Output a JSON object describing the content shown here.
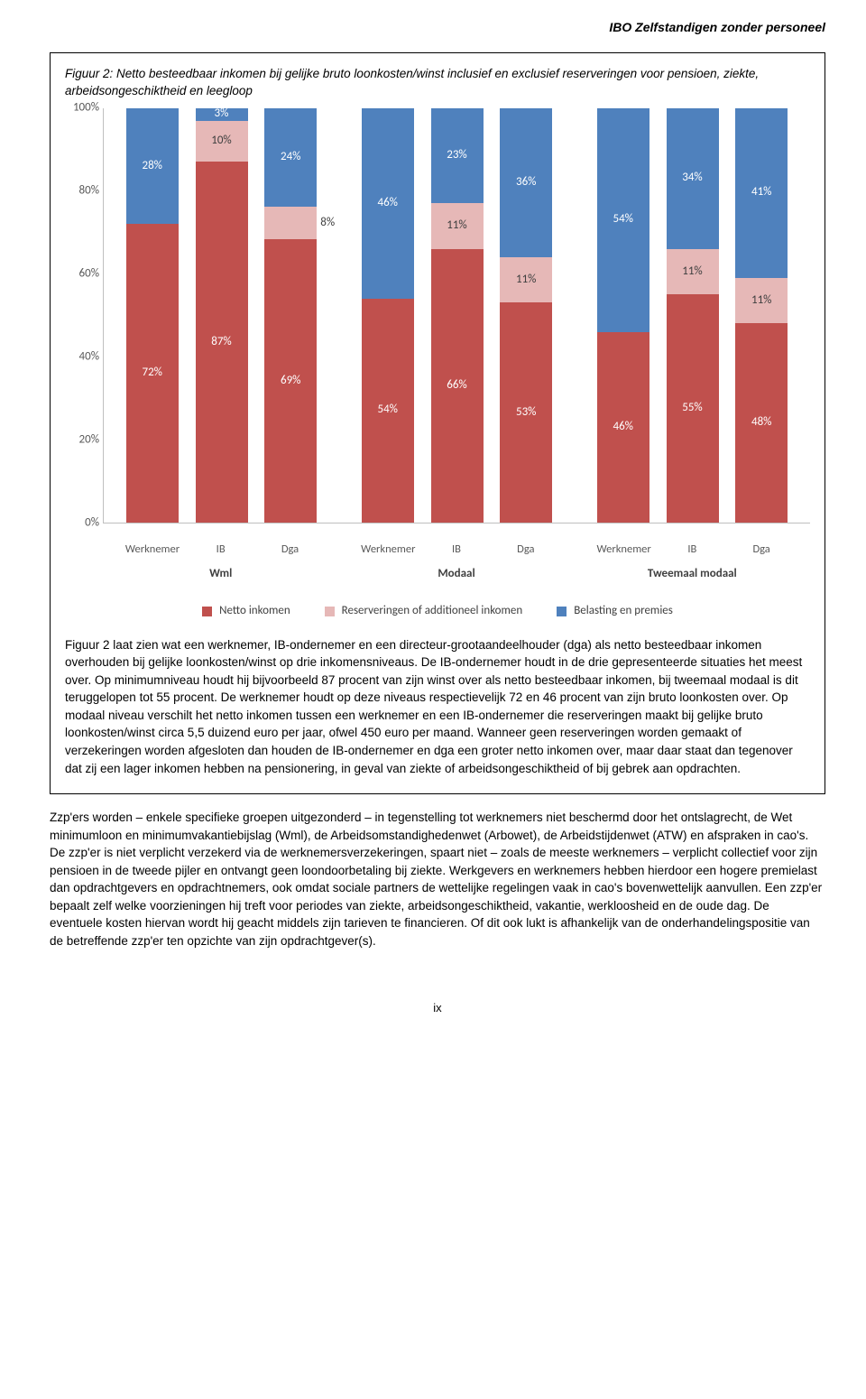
{
  "header": "IBO Zelfstandigen zonder personeel",
  "figure": {
    "caption": "Figuur 2: Netto besteedbaar inkomen bij gelijke bruto loonkosten/winst inclusief en exclusief reserveringen voor pensioen, ziekte, arbeidsongeschiktheid en leegloop",
    "chart": {
      "type": "stacked-bar",
      "ylim": [
        0,
        100
      ],
      "ytick_step": 20,
      "yticks": [
        "0%",
        "20%",
        "40%",
        "60%",
        "80%",
        "100%"
      ],
      "colors": {
        "netto": "#c0504d",
        "reserv": "#e6b8b7",
        "belasting": "#4f81bd"
      },
      "legend": [
        {
          "key": "netto",
          "label": "Netto inkomen"
        },
        {
          "key": "reserv",
          "label": "Reserveringen of additioneel inkomen"
        },
        {
          "key": "belasting",
          "label": "Belasting en premies"
        }
      ],
      "groups": [
        {
          "label": "Wml",
          "bars": [
            {
              "label": "Werknemer",
              "segs": [
                {
                  "k": "netto",
                  "v": 72,
                  "t": "72%"
                },
                {
                  "k": "belasting",
                  "v": 28,
                  "t": "28%"
                }
              ]
            },
            {
              "label": "IB",
              "segs": [
                {
                  "k": "netto",
                  "v": 87,
                  "t": "87%"
                },
                {
                  "k": "reserv",
                  "v": 10,
                  "t": "10%",
                  "light": true
                },
                {
                  "k": "belasting",
                  "v": 3,
                  "t": "3%"
                }
              ]
            },
            {
              "label": "Dga",
              "segs": [
                {
                  "k": "netto",
                  "v": 69,
                  "t": "69%"
                },
                {
                  "k": "reserv",
                  "v": 8,
                  "t": "8%",
                  "light": true,
                  "outside": true
                },
                {
                  "k": "belasting",
                  "v": 24,
                  "t": "24%"
                }
              ]
            }
          ]
        },
        {
          "label": "Modaal",
          "bars": [
            {
              "label": "Werknemer",
              "segs": [
                {
                  "k": "netto",
                  "v": 54,
                  "t": "54%"
                },
                {
                  "k": "belasting",
                  "v": 46,
                  "t": "46%"
                }
              ]
            },
            {
              "label": "IB",
              "segs": [
                {
                  "k": "netto",
                  "v": 66,
                  "t": "66%"
                },
                {
                  "k": "reserv",
                  "v": 11,
                  "t": "11%",
                  "light": true
                },
                {
                  "k": "belasting",
                  "v": 23,
                  "t": "23%"
                }
              ]
            },
            {
              "label": "Dga",
              "segs": [
                {
                  "k": "netto",
                  "v": 53,
                  "t": "53%"
                },
                {
                  "k": "reserv",
                  "v": 11,
                  "t": "11%",
                  "light": true
                },
                {
                  "k": "belasting",
                  "v": 36,
                  "t": "36%"
                }
              ]
            }
          ]
        },
        {
          "label": "Tweemaal modaal",
          "bars": [
            {
              "label": "Werknemer",
              "segs": [
                {
                  "k": "netto",
                  "v": 46,
                  "t": "46%"
                },
                {
                  "k": "belasting",
                  "v": 54,
                  "t": "54%"
                }
              ]
            },
            {
              "label": "IB",
              "segs": [
                {
                  "k": "netto",
                  "v": 55,
                  "t": "55%"
                },
                {
                  "k": "reserv",
                  "v": 11,
                  "t": "11%",
                  "light": true
                },
                {
                  "k": "belasting",
                  "v": 34,
                  "t": "34%"
                }
              ]
            },
            {
              "label": "Dga",
              "segs": [
                {
                  "k": "netto",
                  "v": 48,
                  "t": "48%"
                },
                {
                  "k": "reserv",
                  "v": 11,
                  "t": "11%",
                  "light": true
                },
                {
                  "k": "belasting",
                  "v": 41,
                  "t": "41%"
                }
              ]
            }
          ]
        }
      ]
    },
    "body": "Figuur 2 laat zien wat een werknemer, IB-ondernemer en een directeur-grootaandeelhouder (dga) als netto besteedbaar inkomen overhouden bij gelijke loonkosten/winst op drie inkomensniveaus. De IB-ondernemer houdt in de drie gepresenteerde situaties het meest over. Op minimumniveau houdt hij bijvoorbeeld 87 procent van zijn winst over als netto besteedbaar inkomen, bij tweemaal modaal is dit teruggelopen tot 55 procent. De werknemer houdt op deze niveaus respectievelijk 72 en 46 procent van zijn bruto loonkosten over. Op modaal niveau verschilt het netto inkomen tussen een werknemer en een IB-ondernemer die reserveringen maakt bij gelijke bruto loonkosten/winst circa 5,5 duizend euro per jaar, ofwel 450 euro per maand. Wanneer geen reserveringen worden gemaakt of verzekeringen worden afgesloten dan houden de IB-ondernemer en dga een groter netto inkomen over, maar daar staat dan tegenover dat zij een lager inkomen hebben na pensionering, in geval van ziekte of arbeidsongeschiktheid of bij gebrek aan opdrachten."
  },
  "paragraph2": "Zzp'ers worden – enkele specifieke groepen uitgezonderd – in tegenstelling tot werknemers niet beschermd door het ontslagrecht, de Wet minimumloon en minimumvakantiebijslag (Wml), de Arbeidsomstandighedenwet (Arbowet), de Arbeidstijdenwet (ATW) en afspraken in cao's. De zzp'er is niet verplicht verzekerd via de werknemersverzekeringen, spaart niet – zoals de meeste werknemers – verplicht collectief voor zijn pensioen in de tweede pijler en ontvangt geen loondoorbetaling bij ziekte. Werkgevers en werknemers hebben hierdoor een hogere premielast dan opdrachtgevers en opdrachtnemers, ook omdat sociale partners de wettelijke regelingen vaak in cao's bovenwettelijk aanvullen. Een zzp'er bepaalt zelf welke voorzieningen hij treft voor periodes van ziekte, arbeidsongeschiktheid, vakantie, werkloosheid en de oude dag. De eventuele kosten hiervan wordt hij geacht middels zijn tarieven te financieren. Of dit ook lukt is afhankelijk van de onderhandelingspositie van de betreffende zzp'er ten opzichte van zijn opdrachtgever(s).",
  "page_num": "ix"
}
